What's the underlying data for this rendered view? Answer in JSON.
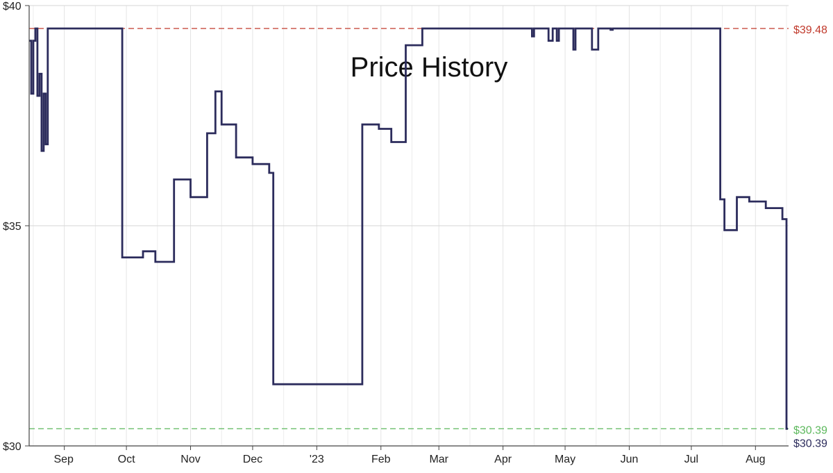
{
  "chart_data": {
    "type": "line",
    "step": true,
    "title": "Price History",
    "xlabel": "",
    "ylabel": "",
    "ylim": [
      30,
      40
    ],
    "xlim": [
      "2022-08-15",
      "2023-08-17"
    ],
    "y_ticks": [
      "$40",
      "$35",
      "$30"
    ],
    "y_tick_values": [
      40,
      35,
      30
    ],
    "x_ticks": [
      "Sep",
      "Oct",
      "Nov",
      "Dec",
      "'23",
      "Feb",
      "Mar",
      "Apr",
      "May",
      "Jun",
      "Jul",
      "Aug"
    ],
    "x_tick_dates": [
      "2022-09-01",
      "2022-10-01",
      "2022-11-01",
      "2022-12-01",
      "2023-01-01",
      "2023-02-01",
      "2023-03-01",
      "2023-04-01",
      "2023-05-01",
      "2023-06-01",
      "2023-07-01",
      "2023-08-01"
    ],
    "grid": true,
    "reference_lines": [
      {
        "label": "$39.48",
        "value": 39.48,
        "color": "#c0392b",
        "style": "dashed"
      },
      {
        "label": "$30.39",
        "value": 30.39,
        "color": "#5cb85c",
        "style": "dashed"
      }
    ],
    "current_label": {
      "label": "$30.39",
      "value": 30.39,
      "color": "#2c2c5c"
    },
    "series": [
      {
        "color": "#2c2c5c",
        "points": [
          [
            "2022-08-15",
            39.2
          ],
          [
            "2022-08-16",
            38.0
          ],
          [
            "2022-08-17",
            39.2
          ],
          [
            "2022-08-18",
            39.48
          ],
          [
            "2022-08-19",
            37.95
          ],
          [
            "2022-08-20",
            38.45
          ],
          [
            "2022-08-21",
            36.7
          ],
          [
            "2022-08-22",
            38.0
          ],
          [
            "2022-08-23",
            36.85
          ],
          [
            "2022-08-24",
            39.48
          ],
          [
            "2022-09-29",
            34.28
          ],
          [
            "2022-10-09",
            34.42
          ],
          [
            "2022-10-15",
            34.18
          ],
          [
            "2022-10-24",
            36.05
          ],
          [
            "2022-11-01",
            35.65
          ],
          [
            "2022-11-09",
            37.1
          ],
          [
            "2022-11-13",
            38.05
          ],
          [
            "2022-11-16",
            37.3
          ],
          [
            "2022-11-23",
            36.55
          ],
          [
            "2022-12-01",
            36.4
          ],
          [
            "2022-12-09",
            36.2
          ],
          [
            "2022-12-11",
            31.4
          ],
          [
            "2023-01-23",
            37.3
          ],
          [
            "2023-01-31",
            37.2
          ],
          [
            "2023-02-06",
            36.9
          ],
          [
            "2023-02-13",
            39.1
          ],
          [
            "2023-02-21",
            39.48
          ],
          [
            "2023-04-15",
            39.3
          ],
          [
            "2023-04-16",
            39.48
          ],
          [
            "2023-04-23",
            39.2
          ],
          [
            "2023-04-25",
            39.48
          ],
          [
            "2023-04-27",
            39.2
          ],
          [
            "2023-04-28",
            39.48
          ],
          [
            "2023-05-05",
            39.0
          ],
          [
            "2023-05-06",
            39.48
          ],
          [
            "2023-05-14",
            39.0
          ],
          [
            "2023-05-17",
            39.48
          ],
          [
            "2023-05-23",
            39.45
          ],
          [
            "2023-05-24",
            39.48
          ],
          [
            "2023-07-15",
            35.6
          ],
          [
            "2023-07-17",
            34.9
          ],
          [
            "2023-07-23",
            35.65
          ],
          [
            "2023-07-29",
            35.55
          ],
          [
            "2023-08-06",
            35.4
          ],
          [
            "2023-08-14",
            35.15
          ],
          [
            "2023-08-16",
            30.39
          ]
        ]
      }
    ]
  }
}
